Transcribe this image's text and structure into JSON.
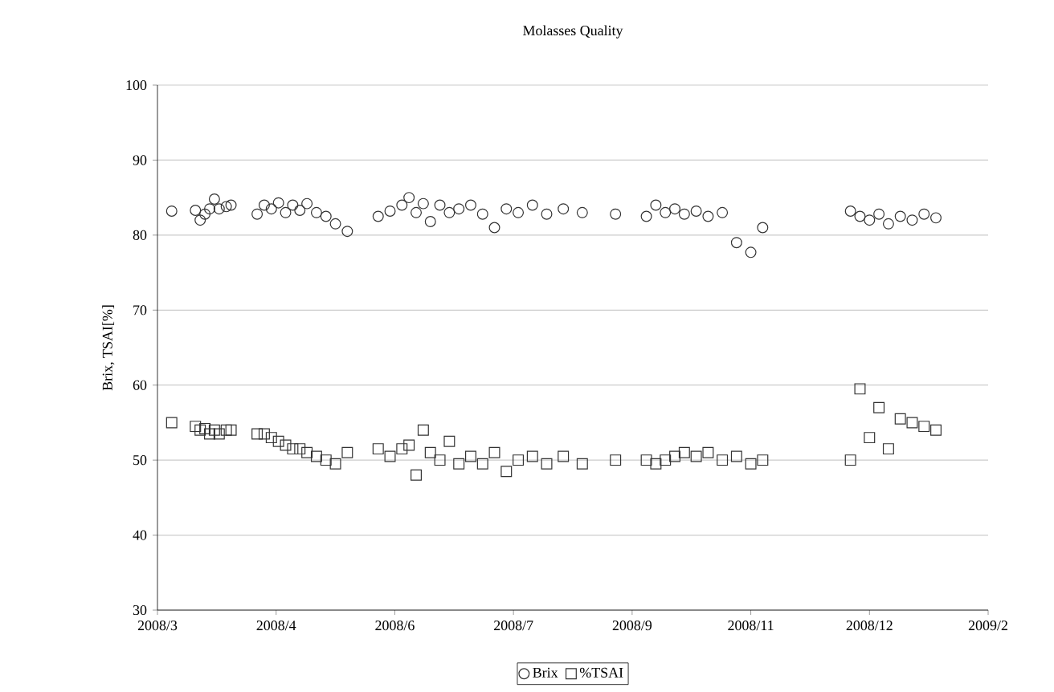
{
  "chart_data": {
    "type": "scatter",
    "title": "Molasses Quality",
    "ylabel": "Brix, TSAI[%]",
    "x": [
      "2008-03-07",
      "2008-03-17",
      "2008-03-19",
      "2008-03-21",
      "2008-03-23",
      "2008-03-25",
      "2008-03-27",
      "2008-03-30",
      "2008-04-01",
      "2008-04-12",
      "2008-04-15",
      "2008-04-18",
      "2008-04-21",
      "2008-04-24",
      "2008-04-27",
      "2008-04-30",
      "2008-05-03",
      "2008-05-07",
      "2008-05-11",
      "2008-05-15",
      "2008-05-20",
      "2008-06-02",
      "2008-06-07",
      "2008-06-12",
      "2008-06-15",
      "2008-06-18",
      "2008-06-21",
      "2008-06-24",
      "2008-06-28",
      "2008-07-02",
      "2008-07-06",
      "2008-07-11",
      "2008-07-16",
      "2008-07-21",
      "2008-07-26",
      "2008-07-31",
      "2008-08-06",
      "2008-08-12",
      "2008-08-19",
      "2008-08-27",
      "2008-09-10",
      "2008-09-23",
      "2008-09-27",
      "2008-10-01",
      "2008-10-05",
      "2008-10-09",
      "2008-10-14",
      "2008-10-19",
      "2008-10-25",
      "2008-10-31",
      "2008-11-06",
      "2008-11-11",
      "2008-12-18",
      "2008-12-22",
      "2008-12-26",
      "2008-12-30",
      "2009-01-03",
      "2009-01-08",
      "2009-01-13",
      "2009-01-18",
      "2009-01-23"
    ],
    "series": [
      {
        "name": "Brix",
        "color": "#333333",
        "marker": "circle",
        "values": [
          83.2,
          83.3,
          82.0,
          82.8,
          83.5,
          84.8,
          83.5,
          83.8,
          84.0,
          82.8,
          84.0,
          83.5,
          84.3,
          83.0,
          84.0,
          83.3,
          84.2,
          83.0,
          82.5,
          81.5,
          80.5,
          82.5,
          83.2,
          84.0,
          85.0,
          83.0,
          84.2,
          81.8,
          84.0,
          83.0,
          83.5,
          84.0,
          82.8,
          81.0,
          83.5,
          83.0,
          84.0,
          82.8,
          83.5,
          83.0,
          82.8,
          82.5,
          84.0,
          83.0,
          83.5,
          82.8,
          83.2,
          82.5,
          83.0,
          79.0,
          77.7,
          81.0,
          83.2,
          82.5,
          82.0,
          82.8,
          81.5,
          82.5,
          82.0,
          82.8,
          82.3
        ]
      },
      {
        "name": "%TSAI",
        "color": "#333333",
        "marker": "square",
        "values": [
          55.0,
          54.5,
          54.0,
          54.2,
          53.5,
          54.0,
          53.5,
          54.0,
          54.0,
          53.5,
          53.5,
          53.0,
          52.5,
          52.0,
          51.5,
          51.5,
          51.0,
          50.5,
          50.0,
          49.5,
          51.0,
          51.5,
          50.5,
          51.5,
          52.0,
          48.0,
          54.0,
          51.0,
          50.0,
          52.5,
          49.5,
          50.5,
          49.5,
          51.0,
          48.5,
          50.0,
          50.5,
          49.5,
          50.5,
          49.5,
          50.0,
          50.0,
          49.5,
          50.0,
          50.5,
          51.0,
          50.5,
          51.0,
          50.0,
          50.5,
          49.5,
          50.0,
          50.0,
          59.5,
          53.0,
          57.0,
          51.5,
          55.5,
          55.0,
          54.5,
          54.0
        ]
      }
    ],
    "xlim": [
      "2008-03-01",
      "2009-02-14"
    ],
    "xticks": [
      {
        "value": "2008-03-01",
        "label": "2008/3"
      },
      {
        "value": "2008-04-20",
        "label": "2008/4"
      },
      {
        "value": "2008-06-09",
        "label": "2008/6"
      },
      {
        "value": "2008-07-29",
        "label": "2008/7"
      },
      {
        "value": "2008-09-17",
        "label": "2008/9"
      },
      {
        "value": "2008-11-06",
        "label": "2008/11"
      },
      {
        "value": "2008-12-26",
        "label": "2008/12"
      },
      {
        "value": "2009-02-14",
        "label": "2009/2"
      }
    ],
    "ylim": [
      30,
      100
    ],
    "yticks": [
      30,
      40,
      50,
      60,
      70,
      80,
      90,
      100
    ],
    "grid": "y",
    "legend": "bottom"
  }
}
